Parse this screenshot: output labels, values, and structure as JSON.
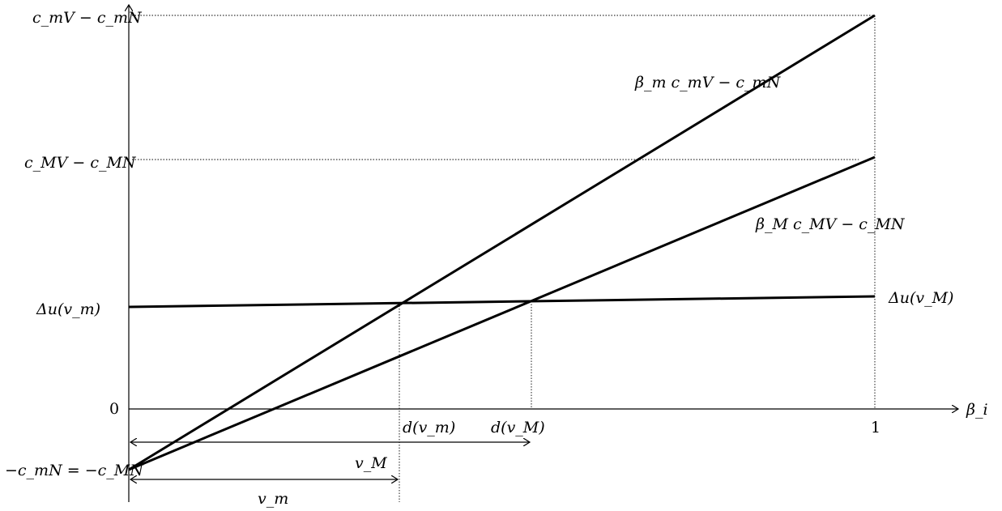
{
  "y_labels": {
    "top": "c_mV − c_mN",
    "mid": "c_MV − c_MN",
    "delta_m": "Δu(v_m)",
    "zero": "0",
    "bottom": "−c_mN = −c_MN"
  },
  "x_labels": {
    "d_vm": "d(v_m)",
    "d_vM": "d(v_M)",
    "one": "1",
    "axis": "β_i"
  },
  "line_labels": {
    "steep": "β_m c_mV − c_mN",
    "shallow": "β_M c_MV − c_MN",
    "flat": "Δu(v_M)"
  },
  "interval_labels": {
    "vM": "v_M",
    "vm": "v_m"
  }
}
